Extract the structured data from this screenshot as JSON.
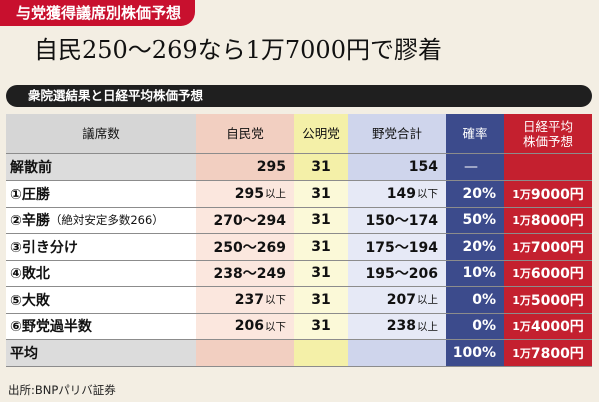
{
  "tag": "与党獲得議席別株価予想",
  "headline": "自民250〜269なら1万7000円で膠着",
  "subtitle": "衆院選結果と日経平均株価予想",
  "header": [
    "議席数",
    "自民党",
    "公明党",
    "野党合計",
    "確率",
    "日経平均\n株価予想"
  ],
  "rows": [
    {
      "label": "解散前",
      "note": "",
      "ldp": "295",
      "ldp_sfx": "",
      "komeito": "31",
      "opp": "154",
      "opp_sfx": "",
      "prob": "—",
      "price_prefix": "",
      "price": ""
    },
    {
      "label": "①圧勝",
      "note": "",
      "ldp": "295",
      "ldp_sfx": "以上",
      "komeito": "31",
      "opp": "149",
      "opp_sfx": "以下",
      "prob": "20%",
      "price_prefix": "1万",
      "price": "9000円"
    },
    {
      "label": "②辛勝",
      "note": "（絶対安定多数266）",
      "ldp": "270〜294",
      "ldp_sfx": "",
      "komeito": "31",
      "opp": "150〜174",
      "opp_sfx": "",
      "prob": "50%",
      "price_prefix": "1万",
      "price": "8000円"
    },
    {
      "label": "③引き分け",
      "note": "",
      "ldp": "250〜269",
      "ldp_sfx": "",
      "komeito": "31",
      "opp": "175〜194",
      "opp_sfx": "",
      "prob": "20%",
      "price_prefix": "1万",
      "price": "7000円"
    },
    {
      "label": "④敗北",
      "note": "",
      "ldp": "238〜249",
      "ldp_sfx": "",
      "komeito": "31",
      "opp": "195〜206",
      "opp_sfx": "",
      "prob": "10%",
      "price_prefix": "1万",
      "price": "6000円"
    },
    {
      "label": "⑤大敗",
      "note": "",
      "ldp": "237",
      "ldp_sfx": "以下",
      "komeito": "31",
      "opp": "207",
      "opp_sfx": "以上",
      "prob": "0%",
      "price_prefix": "1万",
      "price": "5000円"
    },
    {
      "label": "⑥野党過半数",
      "note": "",
      "ldp": "206",
      "ldp_sfx": "以下",
      "komeito": "31",
      "opp": "238",
      "opp_sfx": "以上",
      "prob": "0%",
      "price_prefix": "1万",
      "price": "4000円"
    },
    {
      "label": "平均",
      "note": "",
      "ldp": "",
      "ldp_sfx": "",
      "komeito": "",
      "opp": "",
      "opp_sfx": "",
      "prob": "100%",
      "price_prefix": "1万",
      "price": "7800円"
    }
  ],
  "source": "出所:BNPパリバ証券"
}
